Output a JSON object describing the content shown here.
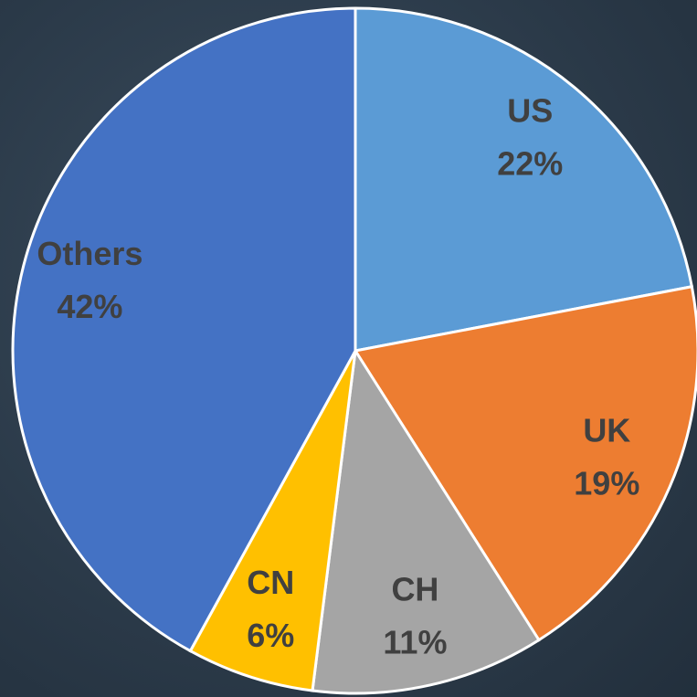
{
  "chart_data": {
    "type": "pie",
    "categories": [
      "US",
      "UK",
      "CH",
      "CN",
      "Others"
    ],
    "values": [
      22,
      19,
      11,
      6,
      42
    ],
    "value_labels": [
      "22%",
      "19%",
      "11%",
      "6%",
      "42%"
    ],
    "colors": [
      "#5b9bd5",
      "#ed7d31",
      "#a5a5a5",
      "#ffc000",
      "#4472c4"
    ]
  }
}
